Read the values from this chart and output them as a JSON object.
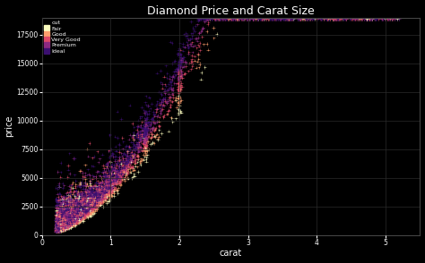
{
  "title": "Diamond Price and Carat Size",
  "xlabel": "carat",
  "ylabel": "price",
  "background_color": "#000000",
  "text_color": "#ffffff",
  "grid_color": "#2a2a2a",
  "title_fontsize": 9,
  "axis_fontsize": 7,
  "xlim": [
    0,
    5.5
  ],
  "ylim": [
    0,
    19000
  ],
  "xticks": [
    0,
    1,
    2,
    3,
    4,
    5
  ],
  "yticks": [
    0,
    2500,
    5000,
    7500,
    10000,
    12500,
    15000,
    17500
  ],
  "cut_categories": [
    "Fair",
    "Good",
    "Very Good",
    "Premium",
    "Ideal"
  ],
  "cut_colors": [
    "#fcfdbf",
    "#fe9f6d",
    "#de4968",
    "#8c2981",
    "#3b0f70"
  ],
  "legend_header": "cut",
  "n_points": 800
}
